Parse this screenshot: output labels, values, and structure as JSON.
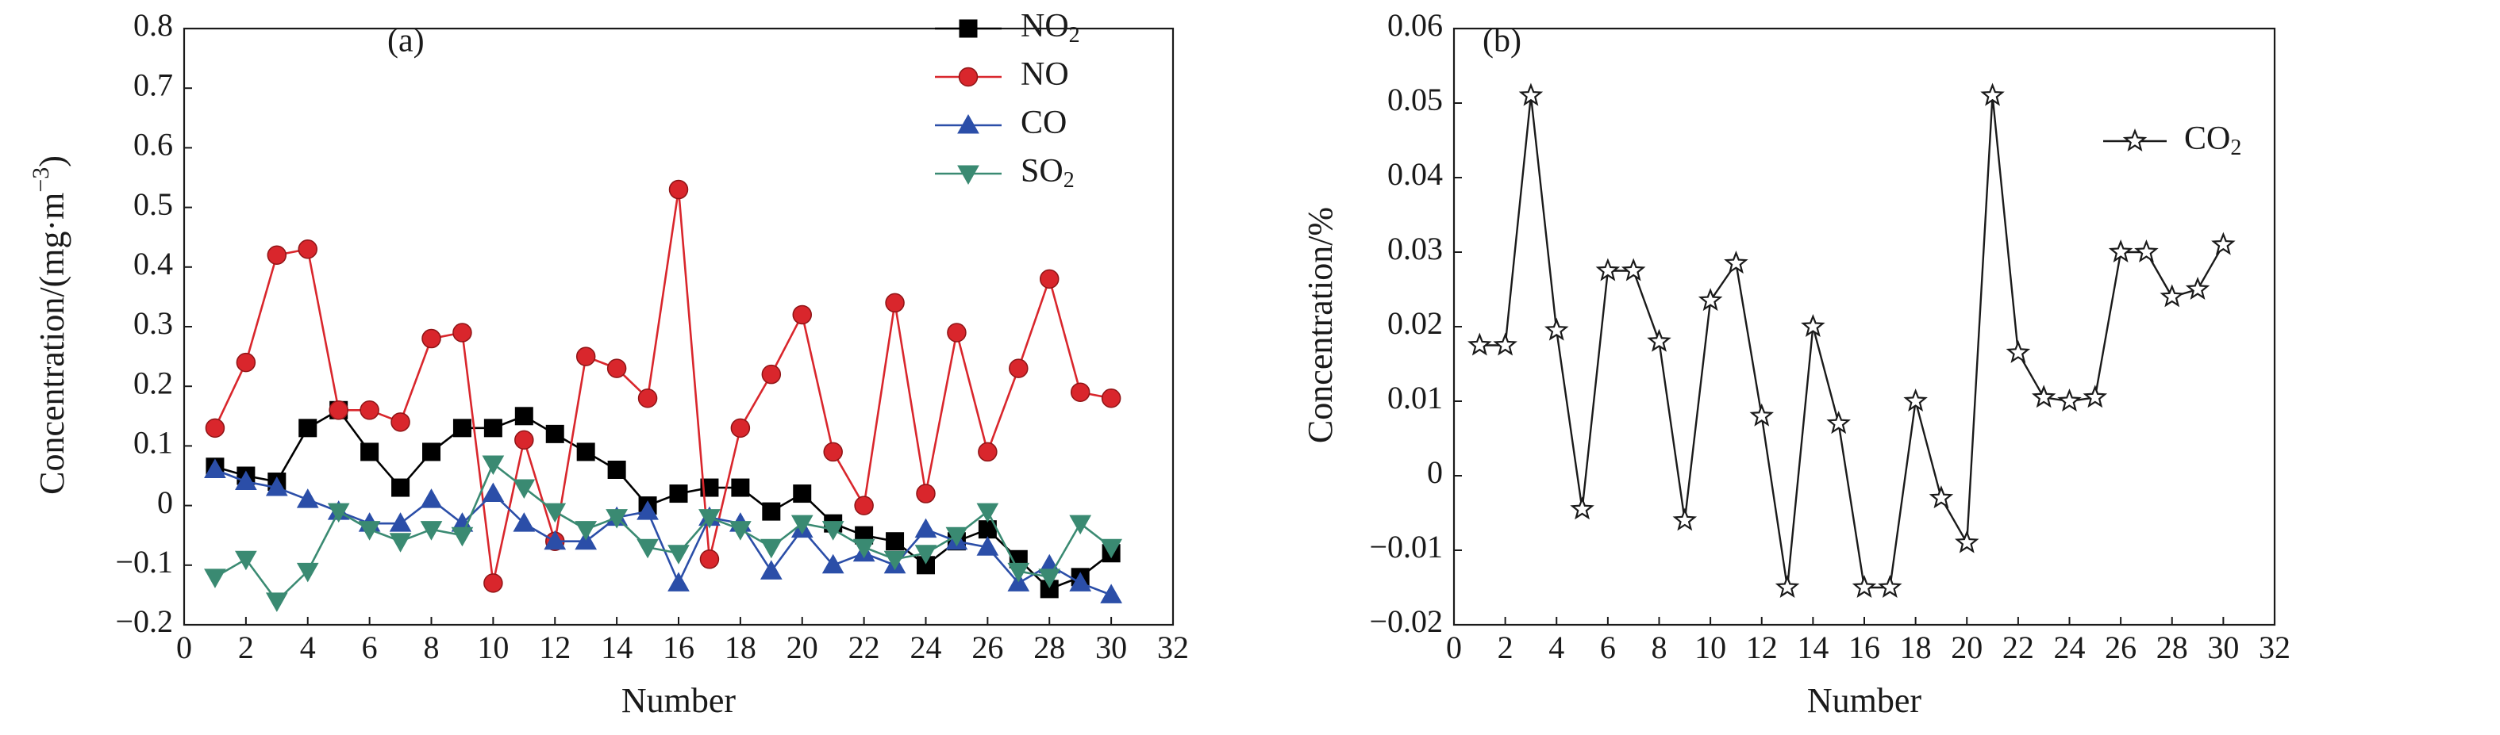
{
  "chart_data": [
    {
      "type": "line",
      "panel_label": "(a)",
      "xlabel": "Number",
      "ylabel": "Concentration/(mg·m",
      "ylabel_sup": "−3",
      "ylabel_tail": ")",
      "xlim": [
        0,
        32
      ],
      "ylim": [
        -0.2,
        0.8
      ],
      "xticks": [
        0,
        2,
        4,
        6,
        8,
        10,
        12,
        14,
        16,
        18,
        20,
        22,
        24,
        26,
        28,
        30,
        32
      ],
      "yticks": [
        -0.2,
        -0.1,
        0,
        0.1,
        0.2,
        0.3,
        0.4,
        0.5,
        0.6,
        0.7,
        0.8
      ],
      "ytick_labels": [
        "−0.2",
        "−0.1",
        "0",
        "0.1",
        "0.2",
        "0.3",
        "0.4",
        "0.5",
        "0.6",
        "0.7",
        "0.8"
      ],
      "legend_position": "top-right",
      "grid": false,
      "x": [
        1,
        2,
        3,
        4,
        5,
        6,
        7,
        8,
        9,
        10,
        11,
        12,
        13,
        14,
        15,
        16,
        17,
        18,
        19,
        20,
        21,
        22,
        23,
        24,
        25,
        26,
        27,
        28,
        29,
        30
      ],
      "series": [
        {
          "name": "NO",
          "name_sub": "2",
          "color": "#000000",
          "marker": "square",
          "values": [
            0.065,
            0.05,
            0.04,
            0.13,
            0.16,
            0.09,
            0.03,
            0.09,
            0.13,
            0.13,
            0.15,
            0.12,
            0.09,
            0.06,
            0.0,
            0.02,
            0.03,
            0.03,
            -0.01,
            0.02,
            -0.03,
            -0.05,
            -0.06,
            -0.1,
            -0.06,
            -0.04,
            -0.09,
            -0.14,
            -0.12,
            -0.08
          ]
        },
        {
          "name": "NO",
          "name_sub": "",
          "color": "#d9262c",
          "marker": "circle",
          "values": [
            0.13,
            0.24,
            0.42,
            0.43,
            0.16,
            0.16,
            0.14,
            0.28,
            0.29,
            -0.13,
            0.11,
            -0.06,
            0.25,
            0.23,
            0.18,
            0.53,
            -0.09,
            0.13,
            0.22,
            0.32,
            0.09,
            0.0,
            0.34,
            0.02,
            0.29,
            0.09,
            0.23,
            0.38,
            0.19,
            0.18
          ]
        },
        {
          "name": "CO",
          "name_sub": "",
          "color": "#2b4ea8",
          "marker": "triangle-up",
          "values": [
            0.06,
            0.04,
            0.03,
            0.01,
            -0.01,
            -0.03,
            -0.03,
            0.01,
            -0.03,
            0.02,
            -0.03,
            -0.06,
            -0.06,
            -0.02,
            -0.01,
            -0.13,
            -0.02,
            -0.03,
            -0.11,
            -0.04,
            -0.1,
            -0.08,
            -0.1,
            -0.04,
            -0.06,
            -0.07,
            -0.13,
            -0.1,
            -0.13,
            -0.15
          ]
        },
        {
          "name": "SO",
          "name_sub": "2",
          "color": "#3a8a72",
          "marker": "triangle-down",
          "values": [
            -0.12,
            -0.09,
            -0.16,
            -0.11,
            -0.01,
            -0.04,
            -0.06,
            -0.04,
            -0.05,
            0.07,
            0.03,
            -0.01,
            -0.04,
            -0.02,
            -0.07,
            -0.08,
            -0.02,
            -0.04,
            -0.07,
            -0.03,
            -0.04,
            -0.07,
            -0.09,
            -0.08,
            -0.05,
            -0.01,
            -0.11,
            -0.12,
            -0.03,
            -0.07
          ]
        }
      ]
    },
    {
      "type": "line",
      "panel_label": "(b)",
      "xlabel": "Number",
      "ylabel": "Concentration/%",
      "xlim": [
        0,
        32
      ],
      "ylim": [
        -0.02,
        0.06
      ],
      "xticks": [
        0,
        2,
        4,
        6,
        8,
        10,
        12,
        14,
        16,
        18,
        20,
        22,
        24,
        26,
        28,
        30,
        32
      ],
      "yticks": [
        -0.02,
        -0.01,
        0,
        0.01,
        0.02,
        0.03,
        0.04,
        0.05,
        0.06
      ],
      "ytick_labels": [
        "−0.02",
        "−0.01",
        "0",
        "0.01",
        "0.02",
        "0.03",
        "0.04",
        "0.05",
        "0.06"
      ],
      "legend_position": "top-right",
      "grid": false,
      "x": [
        1,
        2,
        3,
        4,
        5,
        6,
        7,
        8,
        9,
        10,
        11,
        12,
        13,
        14,
        15,
        16,
        17,
        18,
        19,
        20,
        21,
        22,
        23,
        24,
        25,
        26,
        27,
        28,
        29,
        30
      ],
      "series": [
        {
          "name": "CO",
          "name_sub": "2",
          "color": "#1a1a1a",
          "marker": "star-open",
          "values": [
            0.0175,
            0.0175,
            0.051,
            0.0195,
            -0.0045,
            0.0275,
            0.0275,
            0.018,
            -0.006,
            0.0235,
            0.0285,
            0.008,
            -0.015,
            0.02,
            0.007,
            -0.015,
            -0.015,
            0.01,
            -0.003,
            -0.009,
            0.051,
            0.0165,
            0.0105,
            0.01,
            0.0105,
            0.03,
            0.03,
            0.024,
            0.025,
            0.031
          ]
        }
      ]
    }
  ]
}
